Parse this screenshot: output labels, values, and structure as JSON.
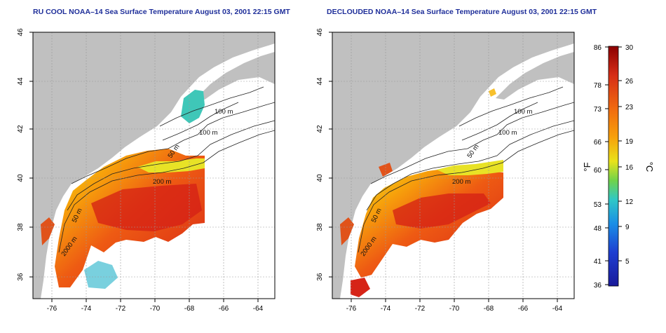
{
  "titles": {
    "left": "RU COOL NOAA–14 Sea Surface Temperature August 03, 2001 22:15 GMT",
    "right": "DECLOUDED NOAA–14 Sea Surface Temperature August 03, 2001 22:15 GMT"
  },
  "map": {
    "x_ticks": [
      "-76",
      "-74",
      "-72",
      "-70",
      "-68",
      "-66",
      "-64"
    ],
    "y_ticks": [
      "36",
      "38",
      "40",
      "42",
      "44",
      "46"
    ],
    "isobath_labels": {
      "left": [
        "100 m",
        "100 m",
        "50 m",
        "200 m",
        "50 m",
        "2000 m"
      ],
      "right": [
        "100 m",
        "100 m",
        "50 m",
        "200 m",
        "50 m",
        "2000 m"
      ]
    },
    "colors": {
      "land": "#c0c0c0",
      "ocean": "#ffffff",
      "grid": "#9a9a9a"
    }
  },
  "colorbar": {
    "fahrenheit_ticks": [
      "86",
      "78",
      "73",
      "66",
      "60",
      "53",
      "48",
      "41",
      "36"
    ],
    "celsius_ticks": [
      "30",
      "26",
      "23",
      "19",
      "16",
      "12",
      "9",
      "5"
    ],
    "f_unit": "°F",
    "c_unit": "°C",
    "stops": [
      "#8b0000",
      "#d62d17",
      "#f06a10",
      "#f7a10b",
      "#e9e21a",
      "#70d34a",
      "#2fc8c6",
      "#1a8ee6",
      "#1e3ed1",
      "#1a1a9a"
    ]
  }
}
